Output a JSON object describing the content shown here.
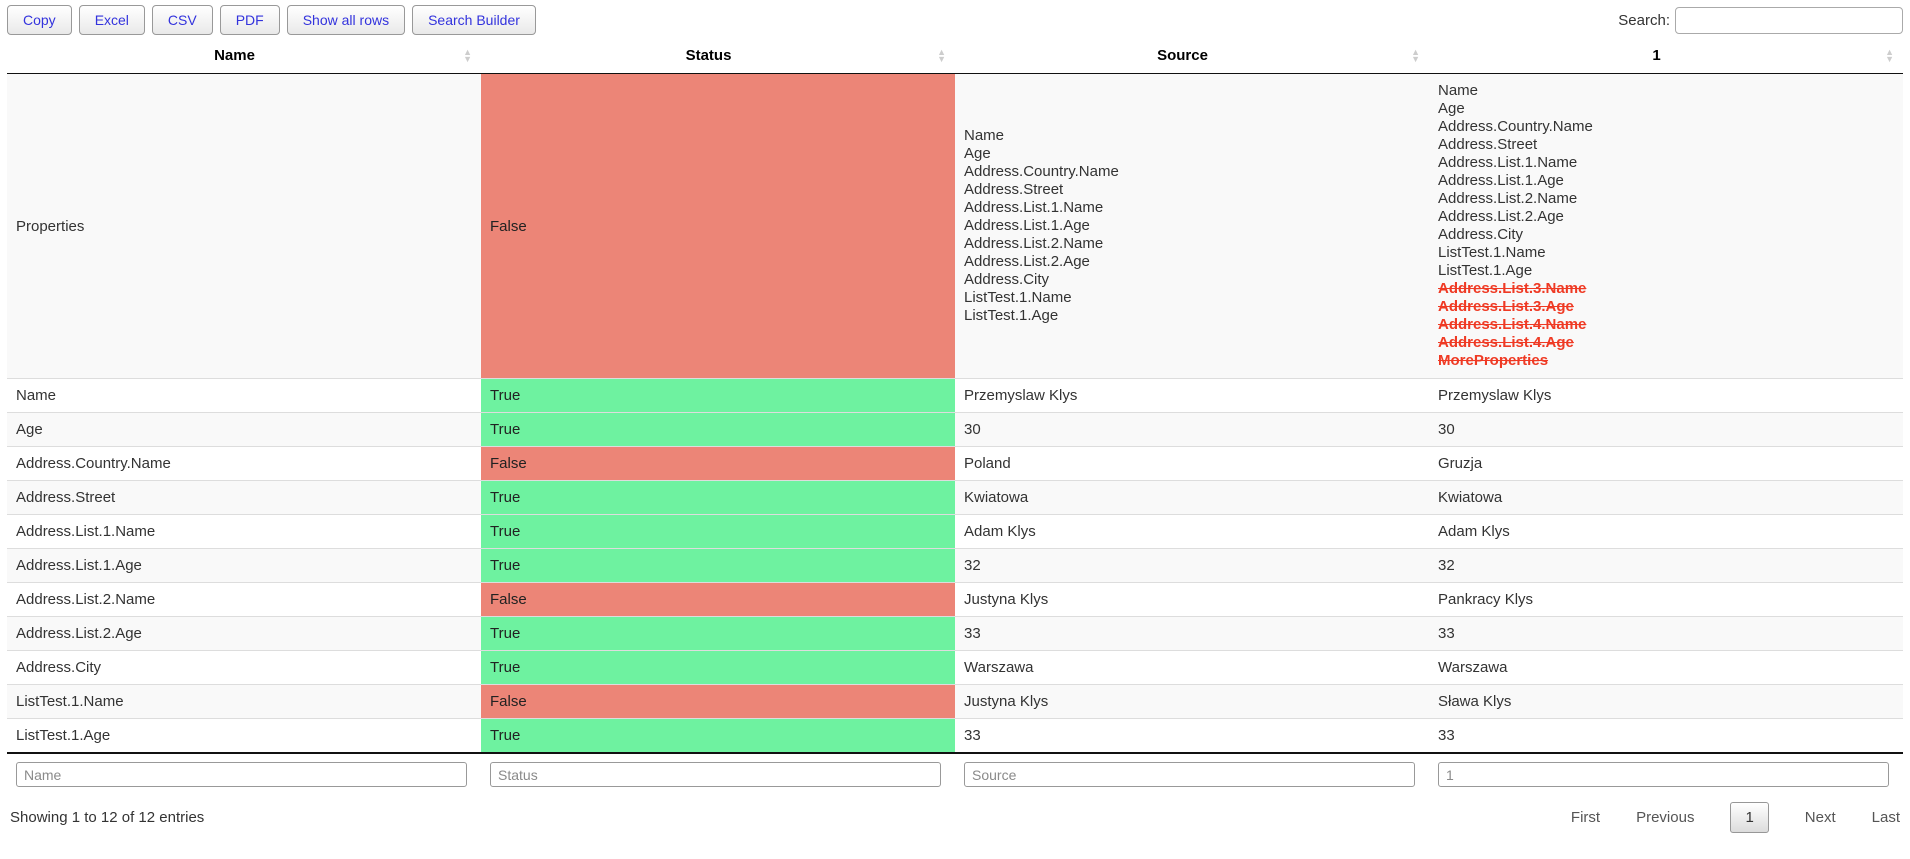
{
  "colors": {
    "true_bg": "#6ef2a0",
    "false_bg": "#ec8577",
    "removed_text": "#ef3a24",
    "button_text": "#3333dd"
  },
  "toolbar": {
    "buttons": [
      {
        "label": "Copy"
      },
      {
        "label": "Excel"
      },
      {
        "label": "CSV"
      },
      {
        "label": "PDF"
      },
      {
        "label": "Show all rows"
      },
      {
        "label": "Search Builder"
      }
    ],
    "search": {
      "label": "Search:",
      "value": ""
    }
  },
  "table": {
    "columns": [
      {
        "label": "Name"
      },
      {
        "label": "Status"
      },
      {
        "label": "Source"
      },
      {
        "label": "1"
      }
    ],
    "properties_row": {
      "name": "Properties",
      "status": "False",
      "status_ok": false,
      "source_list": [
        "Name",
        "Age",
        "Address.Country.Name",
        "Address.Street",
        "Address.List.1.Name",
        "Address.List.1.Age",
        "Address.List.2.Name",
        "Address.List.2.Age",
        "Address.City",
        "ListTest.1.Name",
        "ListTest.1.Age"
      ],
      "compare_list": [
        "Name",
        "Age",
        "Address.Country.Name",
        "Address.Street",
        "Address.List.1.Name",
        "Address.List.1.Age",
        "Address.List.2.Name",
        "Address.List.2.Age",
        "Address.City",
        "ListTest.1.Name",
        "ListTest.1.Age"
      ],
      "compare_removed": [
        "Address.List.3.Name",
        "Address.List.3.Age",
        "Address.List.4.Name",
        "Address.List.4.Age",
        "MoreProperties"
      ]
    },
    "rows": [
      {
        "name": "Name",
        "status": "True",
        "status_ok": true,
        "source": "Przemyslaw Klys",
        "compare": "Przemyslaw Klys"
      },
      {
        "name": "Age",
        "status": "True",
        "status_ok": true,
        "source": "30",
        "compare": "30"
      },
      {
        "name": "Address.Country.Name",
        "status": "False",
        "status_ok": false,
        "source": "Poland",
        "compare": "Gruzja"
      },
      {
        "name": "Address.Street",
        "status": "True",
        "status_ok": true,
        "source": "Kwiatowa",
        "compare": "Kwiatowa"
      },
      {
        "name": "Address.List.1.Name",
        "status": "True",
        "status_ok": true,
        "source": "Adam Klys",
        "compare": "Adam Klys"
      },
      {
        "name": "Address.List.1.Age",
        "status": "True",
        "status_ok": true,
        "source": "32",
        "compare": "32"
      },
      {
        "name": "Address.List.2.Name",
        "status": "False",
        "status_ok": false,
        "source": "Justyna Klys",
        "compare": "Pankracy Klys"
      },
      {
        "name": "Address.List.2.Age",
        "status": "True",
        "status_ok": true,
        "source": "33",
        "compare": "33"
      },
      {
        "name": "Address.City",
        "status": "True",
        "status_ok": true,
        "source": "Warszawa",
        "compare": "Warszawa"
      },
      {
        "name": "ListTest.1.Name",
        "status": "False",
        "status_ok": false,
        "source": "Justyna Klys",
        "compare": "Sława Klys"
      },
      {
        "name": "ListTest.1.Age",
        "status": "True",
        "status_ok": true,
        "source": "33",
        "compare": "33"
      }
    ],
    "filter_placeholders": [
      "Name",
      "Status",
      "Source",
      "1"
    ]
  },
  "footer": {
    "info": "Showing 1 to 12 of 12 entries",
    "pagination": {
      "first": "First",
      "previous": "Previous",
      "pages": [
        "1"
      ],
      "current_page": "1",
      "next": "Next",
      "last": "Last"
    }
  }
}
